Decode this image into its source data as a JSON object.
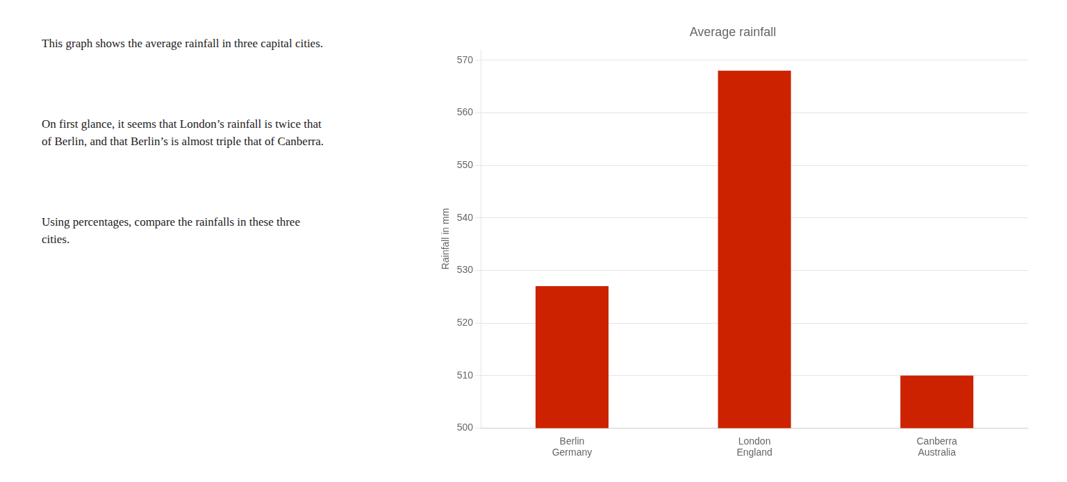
{
  "chart_data": {
    "type": "bar",
    "title": "Average rainfall",
    "ylabel": "Rainfall in mm",
    "categories": [
      "Berlin\nGermany",
      "London\nEngland",
      "Canberra\nAustralia"
    ],
    "values": [
      527,
      568,
      510
    ],
    "color": "#cc2200",
    "ylim": [
      500,
      572
    ],
    "yticks": [
      500,
      510,
      520,
      530,
      540,
      550,
      560,
      570
    ],
    "grid": true,
    "annotations": [
      "This graph shows the average rainfall in three capital cities.",
      "On first glance, it seems that London’s rainfall is twice that\nof Berlin, and that Berlin’s is almost triple that of Canberra.",
      "Using percentages, compare the rainfalls in these three\ncities."
    ]
  }
}
